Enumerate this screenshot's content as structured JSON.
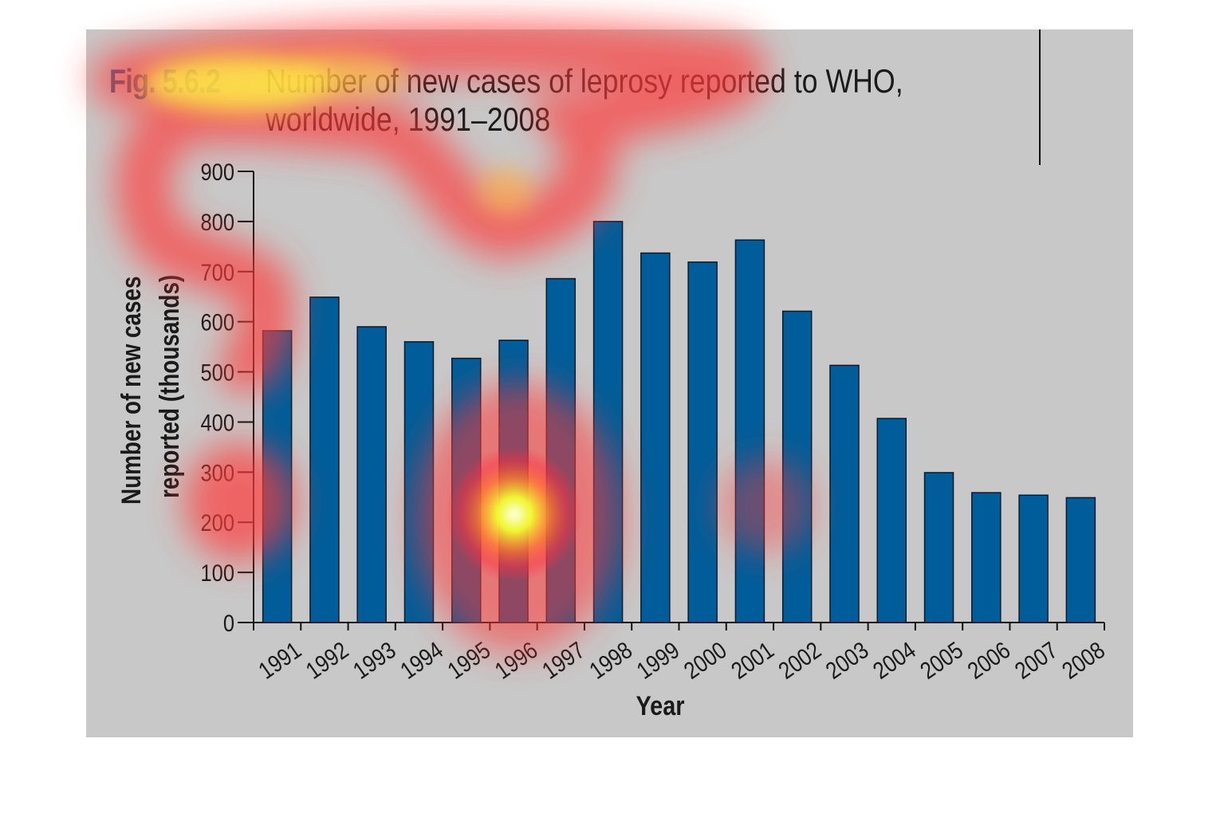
{
  "figure": {
    "label": "Fig. 5.6.2",
    "title_line1": "Number of new cases of leprosy reported to WHO,",
    "title_line2": "worldwide, 1991–2008"
  },
  "colors": {
    "panel": "#c8c8c8",
    "bar": "#005d99",
    "bar_stroke": "#0a1a2a",
    "label_blue": "#1c5f8f"
  },
  "chart_data": {
    "type": "bar",
    "title": "Number of new cases of leprosy reported to WHO, worldwide, 1991–2008",
    "xlabel": "Year",
    "ylabel_line1": "Number of new cases",
    "ylabel_line2": "reported (thousands)",
    "categories": [
      "1991",
      "1992",
      "1993",
      "1994",
      "1995",
      "1996",
      "1997",
      "1998",
      "1999",
      "2000",
      "2001",
      "2002",
      "2003",
      "2004",
      "2005",
      "2006",
      "2007",
      "2008"
    ],
    "values": [
      582,
      649,
      590,
      560,
      527,
      563,
      686,
      800,
      737,
      719,
      763,
      621,
      513,
      407,
      299,
      259,
      254,
      249
    ],
    "ylim": [
      0,
      900
    ],
    "yticks": [
      0,
      100,
      200,
      300,
      400,
      500,
      600,
      700,
      800,
      900
    ],
    "grid": false,
    "legend": "none"
  },
  "overlay": {
    "type": "attention-heatmap",
    "hotspots": [
      "title",
      "y-axis",
      "1996 bar"
    ]
  }
}
